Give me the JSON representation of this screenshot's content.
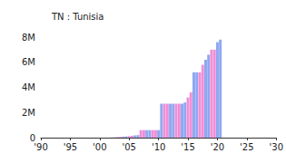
{
  "chart_data": {
    "type": "bar",
    "title": "TN : Tunisia",
    "x": [
      2002,
      2002.5,
      2003,
      2003.5,
      2004,
      2004.5,
      2005,
      2005.5,
      2006,
      2006.5,
      2007,
      2007.5,
      2008,
      2008.5,
      2009,
      2009.5,
      2010,
      2010.5,
      2011,
      2011.5,
      2012,
      2012.5,
      2013,
      2013.5,
      2014,
      2014.5,
      2015,
      2015.5,
      2016,
      2016.5,
      2017,
      2017.5,
      2018,
      2018.5,
      2019,
      2019.5,
      2020,
      2020.5
    ],
    "values": [
      20000,
      30000,
      50000,
      60000,
      80000,
      100000,
      120000,
      150000,
      180000,
      200000,
      600000,
      600000,
      600000,
      600000,
      600000,
      600000,
      600000,
      2700000,
      2700000,
      2700000,
      2700000,
      2700000,
      2700000,
      2700000,
      2700000,
      2800000,
      3200000,
      3600000,
      5200000,
      5200000,
      5200000,
      5800000,
      6200000,
      6600000,
      7000000,
      7000000,
      7600000,
      7800000
    ],
    "colors": [
      "#8fa8f0",
      "#8fa8f0",
      "#f08fd8",
      "#f08fd8",
      "#8fa8f0",
      "#8fa8f0",
      "#f08fd8",
      "#f08fd8",
      "#8fa8f0",
      "#8fa8f0",
      "#f08fd8",
      "#f08fd8",
      "#8fa8f0",
      "#8fa8f0",
      "#f08fd8",
      "#f08fd8",
      "#8fa8f0",
      "#8fa8f0",
      "#f08fd8",
      "#f08fd8",
      "#8fa8f0",
      "#8fa8f0",
      "#f08fd8",
      "#f08fd8",
      "#8fa8f0",
      "#8fa8f0",
      "#f08fd8",
      "#f08fd8",
      "#8fa8f0",
      "#8fa8f0",
      "#f08fd8",
      "#f08fd8",
      "#8fa8f0",
      "#8fa8f0",
      "#f08fd8",
      "#f08fd8",
      "#8fa8f0",
      "#8fa8f0"
    ],
    "xlim": [
      1990,
      2030
    ],
    "xticks": [
      {
        "value": 1990,
        "label": "'90"
      },
      {
        "value": 1995,
        "label": "'95"
      },
      {
        "value": 2000,
        "label": "'00"
      },
      {
        "value": 2005,
        "label": "'05"
      },
      {
        "value": 2010,
        "label": "'10"
      },
      {
        "value": 2015,
        "label": "'15"
      },
      {
        "value": 2020,
        "label": "'20"
      },
      {
        "value": 2025,
        "label": "'25"
      },
      {
        "value": 2030,
        "label": "'30"
      }
    ],
    "ylim": [
      0,
      8000000
    ],
    "yticks": [
      0,
      {
        "value": 2000000,
        "label": "2M"
      },
      {
        "value": 4000000,
        "label": "4M"
      },
      {
        "value": 6000000,
        "label": "6M"
      },
      {
        "value": 8000000,
        "label": "8M"
      }
    ],
    "grid": false
  }
}
